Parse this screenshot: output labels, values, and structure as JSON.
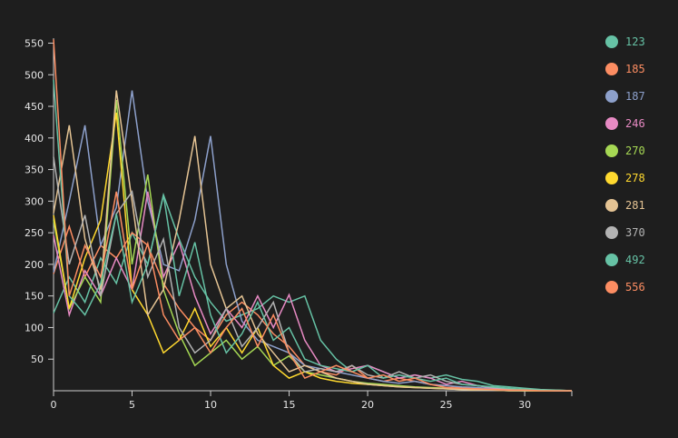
{
  "chart_data": {
    "type": "line",
    "title": "",
    "xlabel": "",
    "ylabel": "",
    "xlim": [
      0,
      33
    ],
    "ylim": [
      0,
      555
    ],
    "x_ticks": [
      0,
      5,
      10,
      15,
      20,
      25,
      30
    ],
    "y_ticks": [
      50,
      100,
      150,
      200,
      250,
      300,
      350,
      400,
      450,
      500,
      550
    ],
    "x": [
      0,
      1,
      2,
      3,
      4,
      5,
      6,
      7,
      8,
      9,
      10,
      11,
      12,
      13,
      14,
      15,
      16,
      17,
      18,
      19,
      20,
      21,
      22,
      23,
      24,
      25,
      26,
      27,
      28,
      29,
      30,
      31,
      32,
      33
    ],
    "legend_position": "right",
    "series": [
      {
        "name": "123",
        "color": "#66c2a5",
        "values": [
          123,
          180,
          140,
          210,
          170,
          250,
          200,
          310,
          240,
          180,
          140,
          110,
          120,
          130,
          150,
          140,
          150,
          80,
          50,
          30,
          40,
          30,
          20,
          25,
          20,
          25,
          18,
          15,
          8,
          6,
          4,
          2,
          1,
          0
        ]
      },
      {
        "name": "185",
        "color": "#fc8d62",
        "values": [
          185,
          260,
          180,
          230,
          210,
          250,
          230,
          170,
          130,
          100,
          80,
          120,
          140,
          120,
          90,
          70,
          40,
          30,
          25,
          40,
          20,
          15,
          20,
          15,
          10,
          8,
          5,
          4,
          3,
          2,
          1,
          1,
          0,
          0
        ]
      },
      {
        "name": "187",
        "color": "#8da0cb",
        "values": [
          187,
          300,
          420,
          230,
          290,
          475,
          300,
          200,
          190,
          270,
          403,
          200,
          110,
          80,
          70,
          60,
          40,
          35,
          30,
          25,
          20,
          15,
          12,
          15,
          10,
          8,
          6,
          5,
          3,
          2,
          1,
          1,
          0,
          0
        ]
      },
      {
        "name": "246",
        "color": "#e78ac3",
        "values": [
          246,
          120,
          190,
          150,
          210,
          160,
          315,
          180,
          235,
          150,
          90,
          130,
          100,
          150,
          100,
          152,
          80,
          40,
          30,
          35,
          40,
          30,
          20,
          25,
          20,
          10,
          15,
          8,
          4,
          2,
          1,
          1,
          0,
          0
        ]
      },
      {
        "name": "270",
        "color": "#a6d854",
        "values": [
          270,
          130,
          180,
          140,
          460,
          200,
          342,
          160,
          90,
          40,
          60,
          80,
          50,
          70,
          40,
          55,
          30,
          25,
          20,
          15,
          12,
          10,
          8,
          6,
          5,
          4,
          3,
          2,
          1,
          1,
          0,
          0,
          0,
          0
        ]
      },
      {
        "name": "278",
        "color": "#ffd92f",
        "values": [
          278,
          130,
          210,
          270,
          440,
          160,
          120,
          60,
          80,
          130,
          70,
          100,
          60,
          100,
          40,
          20,
          30,
          20,
          15,
          12,
          10,
          8,
          6,
          5,
          4,
          3,
          2,
          1,
          1,
          0,
          0,
          0,
          0,
          0
        ]
      },
      {
        "name": "281",
        "color": "#e5c494",
        "values": [
          281,
          420,
          240,
          160,
          475,
          300,
          120,
          160,
          270,
          403,
          200,
          130,
          150,
          90,
          60,
          30,
          40,
          30,
          20,
          15,
          10,
          8,
          6,
          5,
          4,
          3,
          2,
          1,
          1,
          0,
          0,
          0,
          0,
          0
        ]
      },
      {
        "name": "370",
        "color": "#b3b3b3",
        "values": [
          370,
          200,
          278,
          150,
          280,
          315,
          180,
          240,
          100,
          60,
          80,
          130,
          70,
          100,
          140,
          60,
          30,
          35,
          30,
          40,
          25,
          20,
          30,
          20,
          25,
          15,
          10,
          8,
          5,
          3,
          2,
          1,
          0,
          0
        ]
      },
      {
        "name": "492",
        "color": "#66c2a5",
        "values": [
          492,
          150,
          120,
          170,
          280,
          140,
          200,
          310,
          150,
          235,
          120,
          60,
          90,
          140,
          80,
          100,
          50,
          40,
          35,
          30,
          40,
          20,
          25,
          20,
          15,
          20,
          10,
          8,
          6,
          4,
          2,
          1,
          1,
          0
        ]
      },
      {
        "name": "556",
        "color": "#fc8d62",
        "values": [
          556,
          150,
          230,
          180,
          315,
          160,
          233,
          120,
          80,
          100,
          60,
          100,
          130,
          70,
          120,
          60,
          20,
          30,
          40,
          30,
          20,
          25,
          15,
          20,
          10,
          5,
          4,
          3,
          2,
          1,
          1,
          0,
          0,
          0
        ]
      }
    ]
  }
}
